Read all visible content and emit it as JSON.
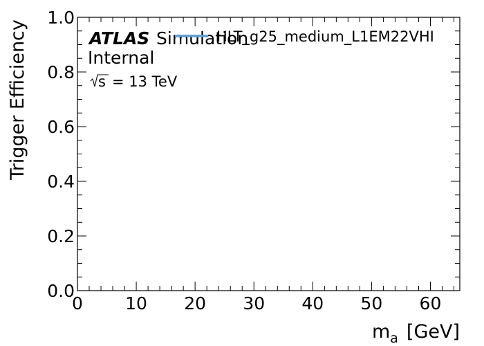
{
  "chart_data": {
    "type": "line",
    "x_label_main": "m",
    "x_label_sub": "a",
    "x_label_unit": "[GeV]",
    "ylabel": "Trigger Efficiency",
    "xlim": [
      0,
      65
    ],
    "ylim": [
      0,
      1
    ],
    "x_ticks": [
      0,
      10,
      20,
      30,
      40,
      50,
      60
    ],
    "x_tick_labels": [
      "0",
      "10",
      "20",
      "30",
      "40",
      "50",
      "60"
    ],
    "y_ticks": [
      0,
      0.2,
      0.4,
      0.6,
      0.8,
      1.0
    ],
    "y_tick_labels": [
      "0.0",
      "0.2",
      "0.4",
      "0.6",
      "0.8",
      "1.0"
    ],
    "x_minor_step": 2,
    "y_minor_step": 0.05,
    "grid": false,
    "legend_position": "top-right",
    "series": [
      {
        "name": "HLT_g25_medium_L1EM22VHI",
        "color": "#5b9bd5",
        "x": [],
        "y": []
      }
    ],
    "annotations": {
      "experiment": "ATLAS",
      "status_1": "Simulation",
      "status_2": "Internal",
      "energy_sqrt": "√s",
      "energy_value": "= 13 TeV"
    }
  }
}
